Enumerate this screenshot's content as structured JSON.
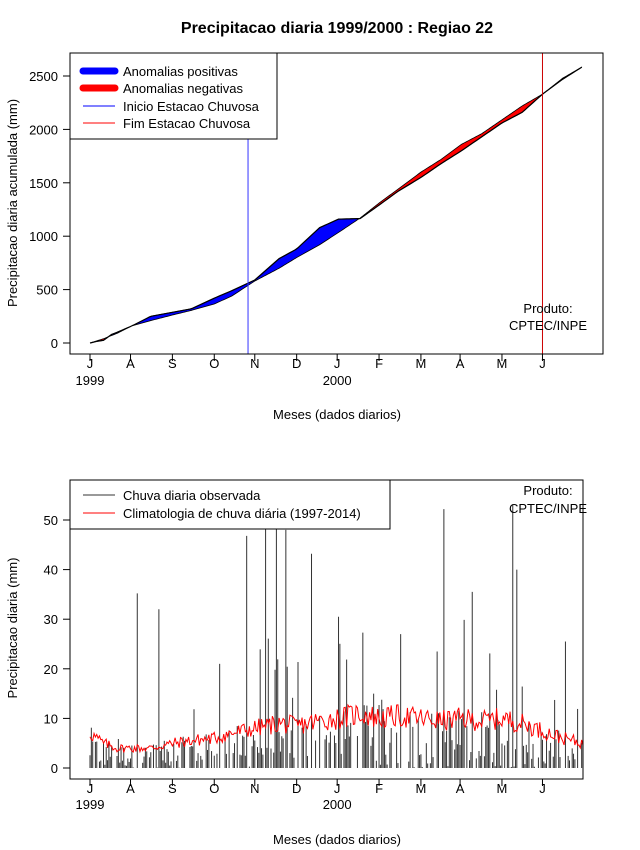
{
  "chart_data": [
    {
      "type": "area",
      "title": "Precipitacao diaria 1999/2000 : Regiao 22",
      "xlabel": "Meses (dados diarios)",
      "ylabel": "Precipitacao diaria acumulada (mm)",
      "ylim": [
        0,
        2700
      ],
      "yticks": [
        0,
        500,
        1000,
        1500,
        2000,
        2500
      ],
      "ytick_labels": [
        "0",
        "500",
        "1000",
        "1500",
        "2000",
        "2500"
      ],
      "month_labels": [
        "J",
        "A",
        "S",
        "O",
        "N",
        "D",
        "J",
        "F",
        "M",
        "A",
        "M",
        "J"
      ],
      "year_labels": [
        {
          "label": "1999",
          "month_index": 0
        },
        {
          "label": "2000",
          "month_index": 6
        }
      ],
      "legend": [
        {
          "label": "Anomalias positivas",
          "color": "#0000ff",
          "style": "thick"
        },
        {
          "label": "Anomalias negativas",
          "color": "#ff0000",
          "style": "thick"
        },
        {
          "label": "Inicio Estacao Chuvosa",
          "color": "#0000ff",
          "style": "thin"
        },
        {
          "label": "Fim Estacao Chuvosa",
          "color": "#ff0000",
          "style": "thin"
        }
      ],
      "annotation": [
        "Produto:",
        "CPTEC/INPE"
      ],
      "onset_day": 117,
      "end_day": 335,
      "climatology_cumulative": {
        "day": [
          0,
          10,
          20,
          31,
          45,
          62,
          75,
          92,
          105,
          122,
          140,
          153,
          170,
          184,
          200,
          215,
          228,
          245,
          260,
          275,
          290,
          305,
          320,
          335,
          350,
          365
        ],
        "value": [
          0,
          40,
          90,
          160,
          210,
          265,
          305,
          365,
          440,
          580,
          700,
          800,
          920,
          1035,
          1170,
          1320,
          1440,
          1600,
          1720,
          1860,
          1960,
          2090,
          2220,
          2330,
          2480,
          2590
        ]
      },
      "observed_cumulative": {
        "day": [
          0,
          5,
          10,
          16,
          20,
          31,
          45,
          62,
          75,
          92,
          105,
          122,
          140,
          153,
          170,
          184,
          200,
          215,
          228,
          245,
          260,
          275,
          290,
          305,
          320,
          335,
          350,
          365
        ],
        "value": [
          0,
          15,
          25,
          80,
          100,
          160,
          250,
          290,
          320,
          420,
          490,
          590,
          790,
          880,
          1080,
          1160,
          1165,
          1300,
          1420,
          1550,
          1680,
          1800,
          1930,
          2060,
          2160,
          2330,
          2470,
          2590
        ]
      },
      "colors": {
        "positive": "#0000ff",
        "negative": "#ff0000",
        "onset": "#3333ff",
        "end": "#cc0000"
      }
    },
    {
      "type": "bar",
      "xlabel": "Meses (dados diarios)",
      "ylabel": "Precipitacao diaria (mm)",
      "ylim": [
        0,
        55
      ],
      "yticks": [
        0,
        10,
        20,
        30,
        40,
        50
      ],
      "ytick_labels": [
        "0",
        "10",
        "20",
        "30",
        "40",
        "50"
      ],
      "month_labels": [
        "J",
        "A",
        "S",
        "O",
        "N",
        "D",
        "J",
        "F",
        "M",
        "A",
        "M",
        "J"
      ],
      "year_labels": [
        {
          "label": "1999",
          "month_index": 0
        },
        {
          "label": "2000",
          "month_index": 6
        }
      ],
      "legend": [
        {
          "label": "Chuva diaria observada",
          "color": "#333333"
        },
        {
          "label": "Climatologia de chuva diária (1997-2014)",
          "color": "#ff0000"
        }
      ],
      "annotation": [
        "Produto:",
        "CPTEC/INPE"
      ],
      "observed_peaks": [
        {
          "day": 35,
          "value": 35.2
        },
        {
          "day": 51,
          "value": 32.0
        },
        {
          "day": 96,
          "value": 21.0
        },
        {
          "day": 116,
          "value": 46.8
        },
        {
          "day": 130,
          "value": 55.0
        },
        {
          "day": 138,
          "value": 53.0
        },
        {
          "day": 145,
          "value": 48.0
        },
        {
          "day": 164,
          "value": 43.2
        },
        {
          "day": 184,
          "value": 30.5
        },
        {
          "day": 230,
          "value": 27.0
        },
        {
          "day": 262,
          "value": 52.2
        },
        {
          "day": 283,
          "value": 35.5
        },
        {
          "day": 313,
          "value": 53.0
        },
        {
          "day": 316,
          "value": 40.0
        },
        {
          "day": 352,
          "value": 25.5
        }
      ],
      "climatology_daily": {
        "day": [
          0,
          10,
          20,
          31,
          45,
          62,
          75,
          92,
          105,
          122,
          140,
          153,
          170,
          184,
          200,
          215,
          228,
          245,
          260,
          275,
          290,
          305,
          320,
          335,
          350,
          365
        ],
        "value": [
          7,
          5,
          4,
          4,
          4,
          5,
          5.5,
          6,
          7,
          8,
          9,
          8.5,
          9.5,
          10,
          11,
          10,
          10.5,
          10,
          9.5,
          10,
          9.5,
          10,
          9,
          7.5,
          6,
          5
        ]
      },
      "colors": {
        "observed": "#333333",
        "climatology": "#ff0000"
      }
    }
  ]
}
